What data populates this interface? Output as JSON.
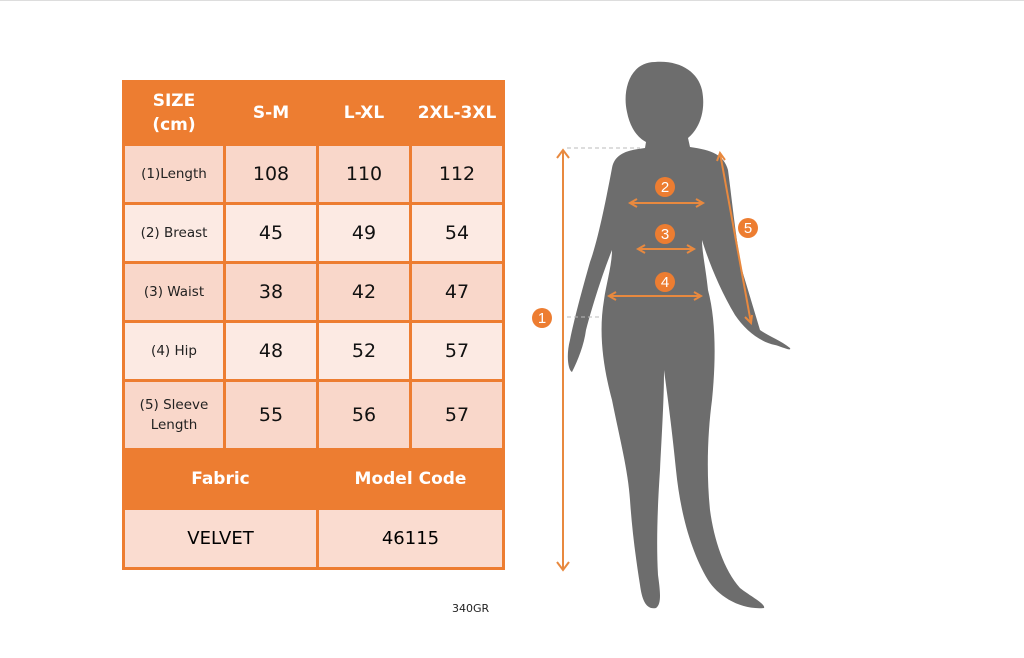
{
  "table": {
    "headers": [
      "SIZE\n(cm)",
      "S-M",
      "L-XL",
      "2XL-3XL"
    ],
    "rows": [
      {
        "label": "(1)Length",
        "values": [
          "108",
          "110",
          "112"
        ]
      },
      {
        "label": "(2) Breast",
        "values": [
          "45",
          "49",
          "54"
        ]
      },
      {
        "label": "(3) Waist",
        "values": [
          "38",
          "42",
          "47"
        ]
      },
      {
        "label": "(4) Hip",
        "values": [
          "48",
          "52",
          "57"
        ]
      },
      {
        "label": "(5) Sleeve Length",
        "values": [
          "55",
          "56",
          "57"
        ]
      }
    ],
    "fabric_label": "Fabric",
    "model_code_label": "Model Code",
    "fabric": "VELVET",
    "model_code": "46115"
  },
  "weight_note": "340GR",
  "figure": {
    "markers": [
      "1",
      "2",
      "3",
      "4",
      "5"
    ]
  },
  "colors": {
    "accent": "#ED7D31",
    "silhouette": "#6d6d6d"
  }
}
